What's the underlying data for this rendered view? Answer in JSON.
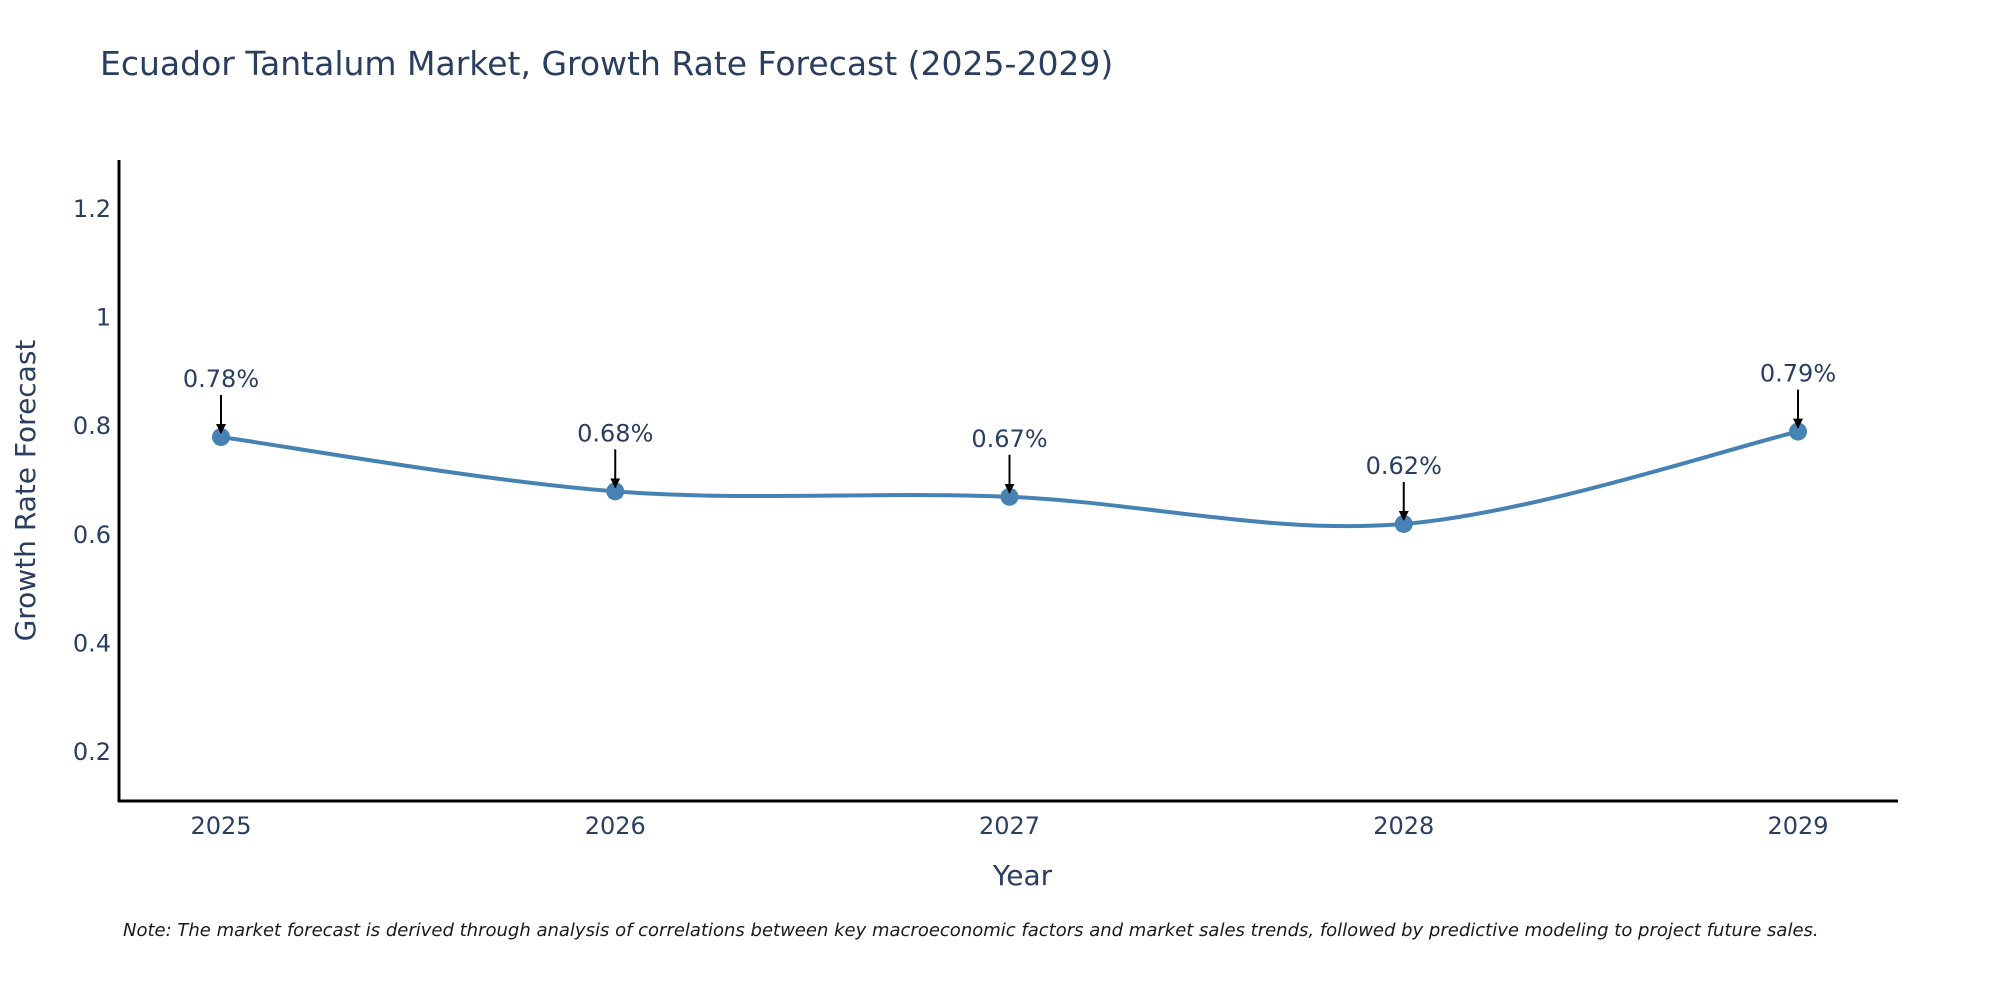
{
  "chart_data": {
    "type": "line",
    "title": "Ecuador Tantalum Market, Growth Rate Forecast (2025-2029)",
    "xlabel": "Year",
    "ylabel": "Growth Rate Forecast",
    "categories": [
      "2025",
      "2026",
      "2027",
      "2028",
      "2029"
    ],
    "values": [
      0.78,
      0.68,
      0.67,
      0.62,
      0.79
    ],
    "data_labels": [
      "0.78%",
      "0.68%",
      "0.67%",
      "0.62%",
      "0.79%"
    ],
    "yticks": [
      0.2,
      0.4,
      0.6,
      0.8,
      1,
      1.2
    ],
    "ytick_labels": [
      "0.2",
      "0.4",
      "0.6",
      "0.8",
      "1",
      "1.2"
    ],
    "ylim": [
      0.11,
      1.29
    ],
    "line_shape": "spline",
    "grid": false,
    "colors": {
      "line": "#4682b4",
      "marker": "#4682b4",
      "text": "#2a3f5f",
      "axis": "#000000",
      "arrow": "#000000"
    }
  },
  "note": "Note: The market forecast is derived through analysis of correlations between key macroeconomic factors and market sales trends, followed by predictive modeling to project future sales."
}
